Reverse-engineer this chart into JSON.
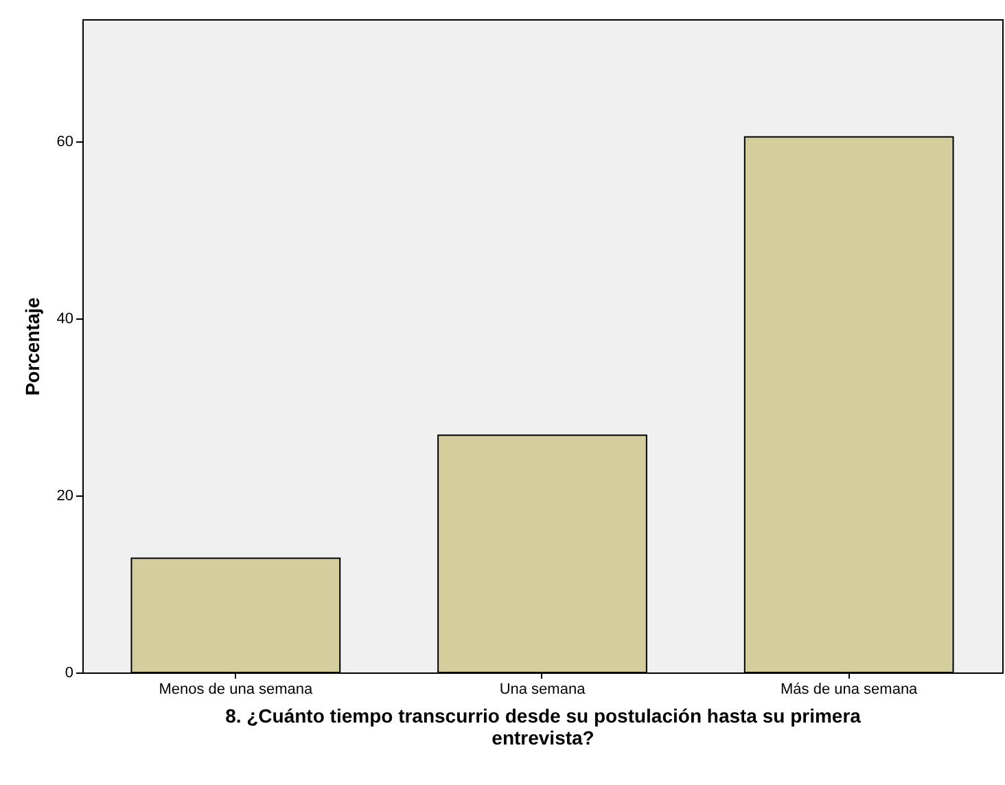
{
  "chart_data": {
    "type": "bar",
    "xlabel": "8. ¿Cuánto tiempo transcurrio desde su postulación hasta su primera entrevista?",
    "ylabel": "Porcentaje",
    "categories": [
      "Menos de una semana",
      "Una semana",
      "Más de una semana"
    ],
    "values": [
      12.9,
      26.8,
      60.5
    ],
    "color": "#d3ce9b",
    "ylim": [
      0,
      73.8
    ],
    "yticks": [
      0,
      20,
      40,
      60
    ],
    "grid": false
  }
}
